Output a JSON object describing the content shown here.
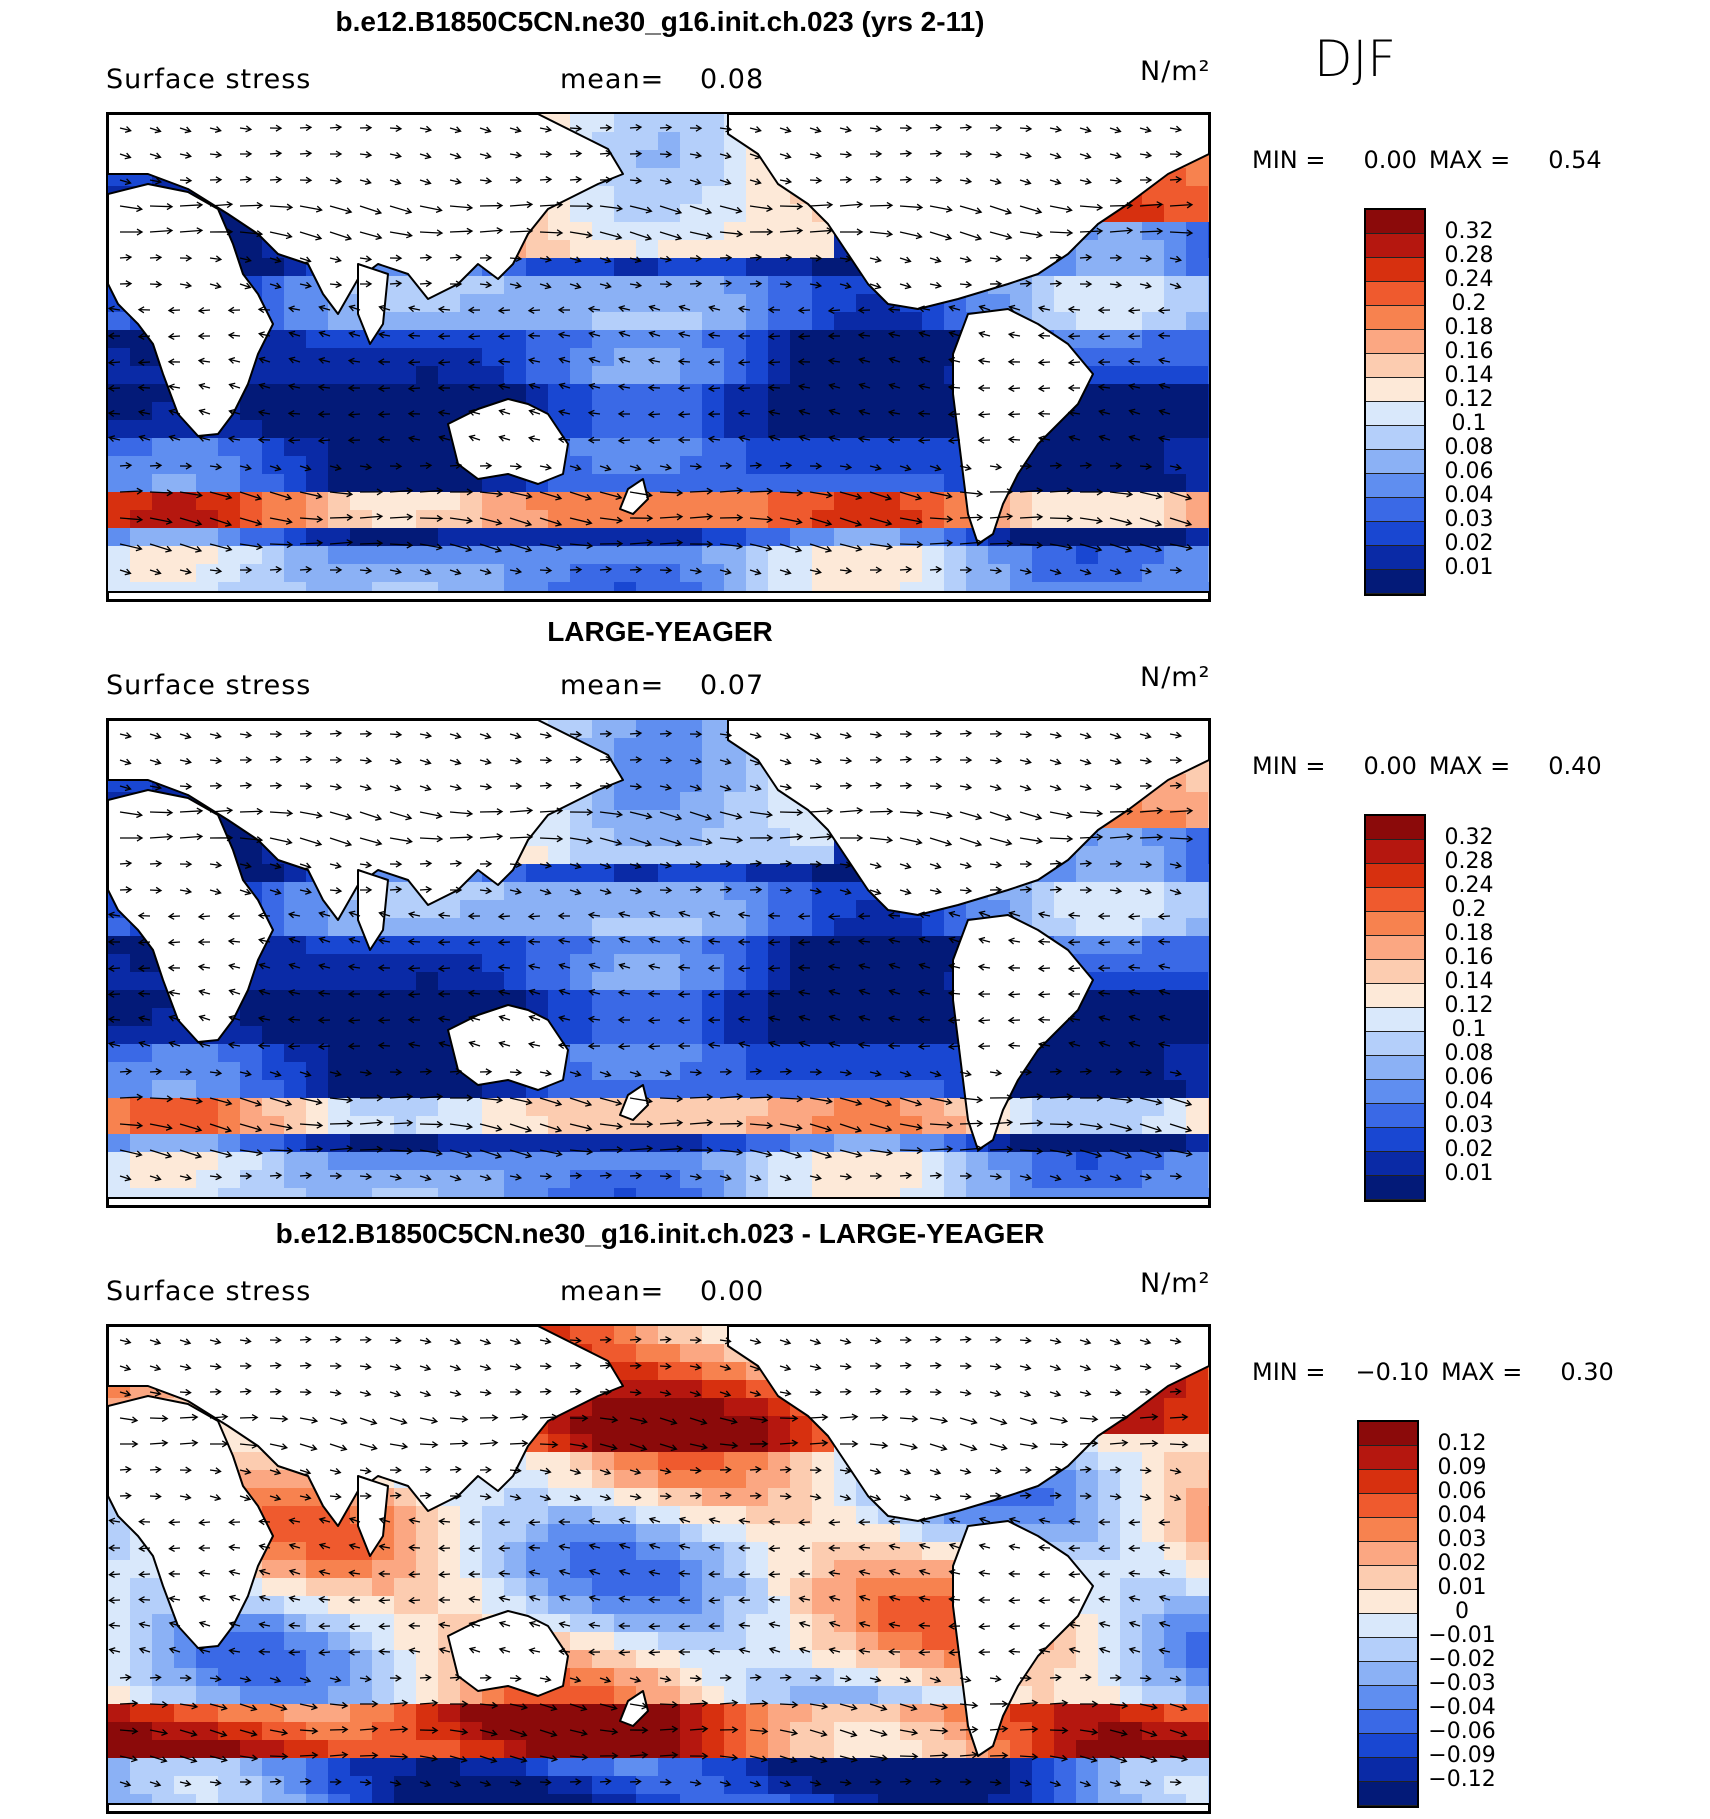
{
  "season": "DJF",
  "panels": [
    {
      "title": "b.e12.B1850C5CN.ne30_g16.init.ch.023 (yrs 2-11)",
      "variable": "Surface stress",
      "mean_label": "mean=",
      "mean_value": "0.08",
      "units": "N/m²",
      "min_label": "MIN =",
      "min_value": "0.00",
      "max_label": "MAX =",
      "max_value": "0.54",
      "colorbar_labels": [
        "0.32",
        "0.28",
        "0.24",
        "0.2",
        "0.18",
        "0.16",
        "0.14",
        "0.12",
        "0.1",
        "0.08",
        "0.06",
        "0.04",
        "0.03",
        "0.02",
        "0.01"
      ],
      "colorbar_colors": [
        "#8b0a0a",
        "#b5170f",
        "#d7300f",
        "#ef5a2e",
        "#f7824f",
        "#fba782",
        "#fcccb0",
        "#fde9d8",
        "#d9e8fb",
        "#b4cffa",
        "#8bb1f5",
        "#5f8ef0",
        "#3a69e6",
        "#1947d2",
        "#0a2aa6",
        "#031a78"
      ]
    },
    {
      "title": "LARGE-YEAGER",
      "variable": "Surface stress",
      "mean_label": "mean=",
      "mean_value": "0.07",
      "units": "N/m²",
      "min_label": "MIN =",
      "min_value": "0.00",
      "max_label": "MAX =",
      "max_value": "0.40",
      "colorbar_labels": [
        "0.32",
        "0.28",
        "0.24",
        "0.2",
        "0.18",
        "0.16",
        "0.14",
        "0.12",
        "0.1",
        "0.08",
        "0.06",
        "0.04",
        "0.03",
        "0.02",
        "0.01"
      ],
      "colorbar_colors": [
        "#8b0a0a",
        "#b5170f",
        "#d7300f",
        "#ef5a2e",
        "#f7824f",
        "#fba782",
        "#fcccb0",
        "#fde9d8",
        "#d9e8fb",
        "#b4cffa",
        "#8bb1f5",
        "#5f8ef0",
        "#3a69e6",
        "#1947d2",
        "#0a2aa6",
        "#031a78"
      ]
    },
    {
      "title": "b.e12.B1850C5CN.ne30_g16.init.ch.023 - LARGE-YEAGER",
      "variable": "Surface stress",
      "mean_label": "mean=",
      "mean_value": "0.00",
      "units": "N/m²",
      "min_label": "MIN =",
      "min_value": "−0.10",
      "max_label": "MAX =",
      "max_value": "0.30",
      "colorbar_labels": [
        "0.12",
        "0.09",
        "0.06",
        "0.04",
        "0.03",
        "0.02",
        "0.01",
        "0",
        "−0.01",
        "−0.02",
        "−0.03",
        "−0.04",
        "−0.06",
        "−0.09",
        "−0.12"
      ],
      "colorbar_colors": [
        "#8b0a0a",
        "#b5170f",
        "#d7300f",
        "#ef5a2e",
        "#f7824f",
        "#fba782",
        "#fcccb0",
        "#fde9d8",
        "#d9e8fb",
        "#b4cffa",
        "#8bb1f5",
        "#5f8ef0",
        "#3a69e6",
        "#1947d2",
        "#0a2aa6",
        "#031a78"
      ]
    }
  ]
}
